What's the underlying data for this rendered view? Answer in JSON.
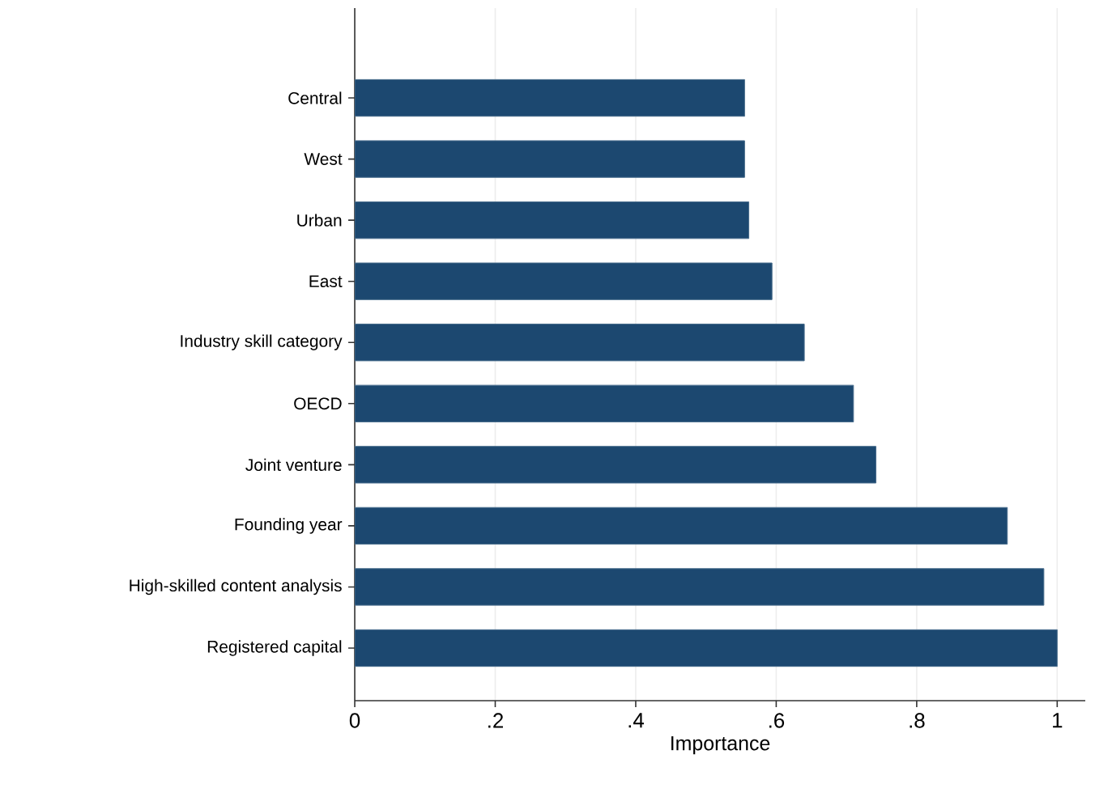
{
  "chart_data": {
    "type": "bar",
    "orientation": "horizontal",
    "xlabel": "Importance",
    "categories": [
      "Central",
      "West",
      "Urban",
      "East",
      "Industry skill category",
      "OECD",
      "Joint venture",
      "Founding year",
      "High-skilled content analysis",
      "Registered capital"
    ],
    "values": [
      0.555,
      0.555,
      0.561,
      0.594,
      0.64,
      0.71,
      0.742,
      0.929,
      0.981,
      1.0
    ],
    "color": "#1c4870",
    "xlim": [
      0,
      1.04
    ],
    "xticks": [
      0,
      {
        "value": 0.2,
        "label": ".2"
      },
      {
        "value": 0.4,
        "label": ".4"
      },
      {
        "value": 0.6,
        "label": ".6"
      },
      {
        "value": 0.8,
        "label": ".8"
      },
      1
    ],
    "grid": "x"
  }
}
